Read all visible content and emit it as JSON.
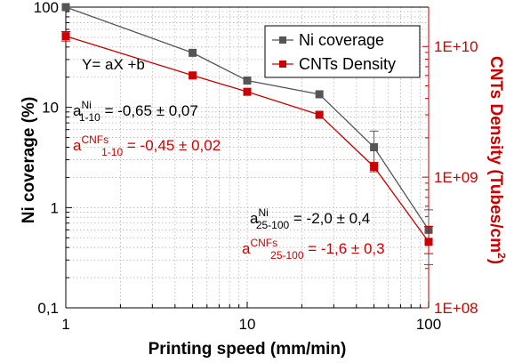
{
  "chart_data": {
    "type": "line",
    "x_scale": "log",
    "x": [
      1,
      5,
      10,
      25,
      50,
      100
    ],
    "xlim": [
      1,
      100
    ],
    "xticks": [
      "1",
      "10",
      "100"
    ],
    "xlabel": "Printing speed (mm/min)",
    "ylabel_left": "Ni coverage (%)",
    "ylabel_right_main": "CNTs Density (Tubes/cm",
    "ylabel_right_sup": "2",
    "ylabel_right_close": ")",
    "ylim_left": [
      0.1,
      100
    ],
    "ylim_right": [
      100000000,
      20000000000
    ],
    "yticks_left": [
      "0,1",
      "1",
      "10",
      "100"
    ],
    "yticks_right": [
      "1E+08",
      "1E+09",
      "1E+10"
    ],
    "grid": true,
    "legend_position": "top-right",
    "series": [
      {
        "name": "Ni coverage",
        "axis": "left",
        "color": "#555555",
        "marker": "square",
        "values": [
          100,
          35,
          18.5,
          13.5,
          4,
          0.6
        ],
        "errors": [
          null,
          null,
          null,
          null,
          [
            2.6,
            5.8
          ],
          [
            0.27,
            0.95
          ]
        ]
      },
      {
        "name": "CNTs Density",
        "axis": "right",
        "color": "#cc0000",
        "marker": "square",
        "values": [
          12000000000,
          6000000000,
          4500000000,
          3000000000,
          1200000000,
          320000000
        ],
        "errors": [
          [
            11000000000,
            13000000000
          ],
          null,
          null,
          null,
          [
            1100000000,
            1300000000
          ],
          [
            260000000,
            420000000
          ]
        ]
      }
    ],
    "annotations": {
      "formula": "Y= aX +b",
      "ni_1_10": {
        "base": "a",
        "sup": "Ni",
        "sub": "1-10",
        "value": " =  -0,65 ± 0,07"
      },
      "cnf_1_10": {
        "base": "a",
        "sup": "CNFs",
        "sub": "1-10",
        "value": " =  -0,45 ± 0,02"
      },
      "ni_25_100": {
        "base": "a",
        "sup": "Ni",
        "sub": "25-100",
        "value": " =  -2,0 ± 0,4"
      },
      "cnf_25_100": {
        "base": "a",
        "sup": "CNFs",
        "sub": "25-100",
        "value": " =  -1,6 ± 0,3"
      }
    }
  }
}
